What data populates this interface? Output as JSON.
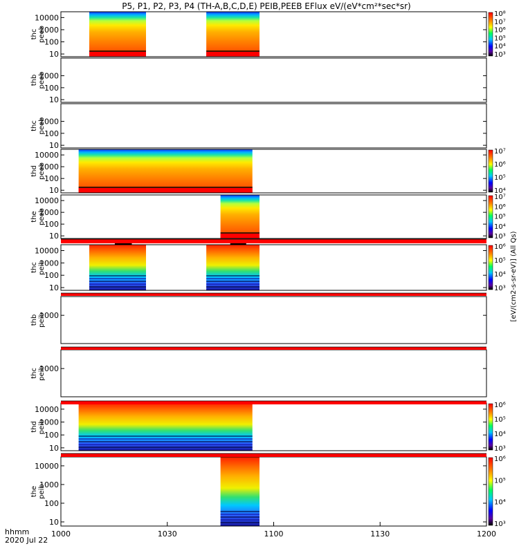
{
  "chart_data": {
    "type": "heatmap",
    "title": "P5, P1, P2, P3, P4 (TH-A,B,C,D,E) PEIB,PEEB EFlux eV/(eV*cm²*sec*sr)",
    "time_axis": {
      "label_line1": "hhmm",
      "label_line2": "2020 Jul 22",
      "ticks": [
        "1000",
        "1030",
        "1100",
        "1130",
        "1200"
      ],
      "range_minutes": [
        0,
        120
      ]
    },
    "y_axis_energy_eV": {
      "range": [
        6,
        30000
      ],
      "scale": "log"
    },
    "colorbar_label": "[eV/(cm2-s-sr-eV)] (All Qs)",
    "panels": [
      {
        "probe": "thc",
        "instrument": "peeb",
        "ylabel": [
          "thc",
          "peeb"
        ],
        "yticks": [
          "10",
          "100",
          "1000",
          "10000"
        ],
        "intervals_min": [
          [
            8,
            24
          ],
          [
            41,
            56
          ]
        ],
        "low_energy_band": "red",
        "colorbar": true,
        "cb_ticks": [
          "10³",
          "10⁴",
          "10⁵",
          "10⁶",
          "10⁷",
          "10⁸"
        ]
      },
      {
        "probe": "thb",
        "instrument": "peeb",
        "ylabel": [
          "thb",
          "peeb"
        ],
        "yticks": [
          "10",
          "100",
          "1000"
        ],
        "intervals_min": [],
        "colorbar": false
      },
      {
        "probe": "thc",
        "instrument": "peeb",
        "ylabel": [
          "thc",
          "peeb"
        ],
        "yticks": [
          "10",
          "100",
          "1000"
        ],
        "intervals_min": [],
        "colorbar": false
      },
      {
        "probe": "thd",
        "instrument": "peeb",
        "ylabel": [
          "thd",
          "peeb"
        ],
        "yticks": [
          "10",
          "100",
          "1000",
          "10000"
        ],
        "intervals_min": [
          [
            5,
            54
          ]
        ],
        "low_energy_band": "red",
        "colorbar": true,
        "cb_ticks": [
          "10⁴",
          "10⁵",
          "10⁶",
          "10⁷"
        ]
      },
      {
        "probe": "the",
        "instrument": "peeb",
        "ylabel": [
          "the",
          "peeb"
        ],
        "yticks": [
          "10",
          "100",
          "1000",
          "10000"
        ],
        "intervals_min": [
          [
            45,
            56
          ]
        ],
        "low_energy_band": "red",
        "colorbar": true,
        "cb_ticks": [
          "10³",
          "10⁴",
          "10⁵",
          "10⁶",
          "10⁷"
        ]
      },
      {
        "probe": "thc",
        "instrument": "peib",
        "ylabel": [
          "thc",
          "peib"
        ],
        "yticks": [
          "10",
          "100",
          "1000",
          "10000"
        ],
        "intervals_min": [
          [
            8,
            24
          ],
          [
            41,
            56
          ]
        ],
        "low_energy_band": "blue",
        "colorbar": true,
        "cb_ticks": [
          "10³",
          "10⁴",
          "10⁵",
          "10⁶"
        ]
      },
      {
        "probe": "thb",
        "instrument": "peib",
        "ylabel": [
          "thb",
          "peib"
        ],
        "yticks": [
          "1000"
        ],
        "intervals_min": [],
        "colorbar": false
      },
      {
        "probe": "thc",
        "instrument": "peib",
        "ylabel": [
          "thc",
          "peib"
        ],
        "yticks": [
          "1000"
        ],
        "intervals_min": [],
        "colorbar": false
      },
      {
        "probe": "thd",
        "instrument": "peib",
        "ylabel": [
          "thd",
          "peib"
        ],
        "yticks": [
          "10",
          "100",
          "1000",
          "10000"
        ],
        "intervals_min": [
          [
            5,
            54
          ]
        ],
        "low_energy_band": "blue",
        "colorbar": true,
        "cb_ticks": [
          "10³",
          "10⁴",
          "10⁵",
          "10⁶"
        ]
      },
      {
        "probe": "the",
        "instrument": "peib",
        "ylabel": [
          "the",
          "peib"
        ],
        "yticks": [
          "10",
          "100",
          "1000",
          "10000"
        ],
        "intervals_min": [
          [
            45,
            56
          ]
        ],
        "low_energy_band": "blue",
        "colorbar": true,
        "cb_ticks": [
          "10³",
          "10⁴",
          "10⁵",
          "10⁶"
        ]
      }
    ]
  }
}
